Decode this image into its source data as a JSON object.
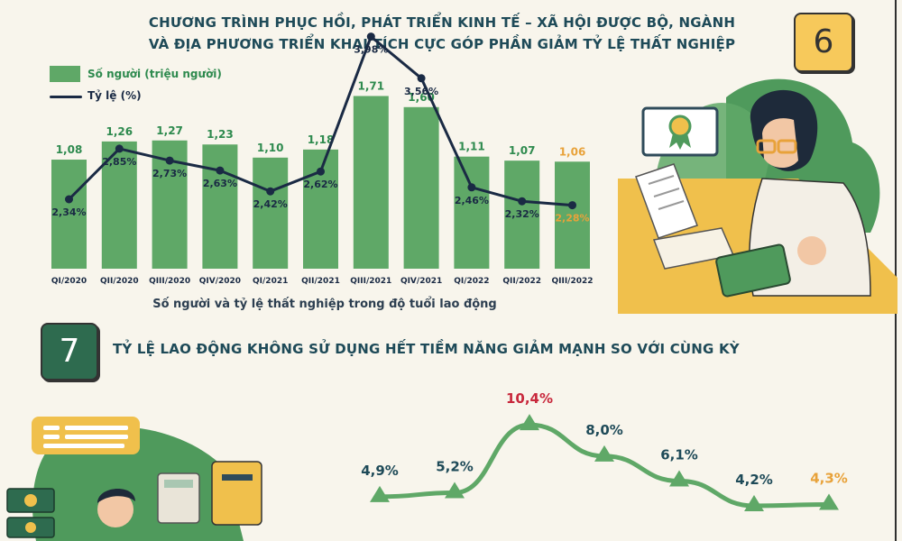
{
  "section6": {
    "number": "6",
    "title_line1": "CHƯƠNG TRÌNH PHỤC HỒI, PHÁT TRIỂN KINH TẾ – XÃ HỘI ĐƯỢC BỘ, NGÀNH",
    "title_line2": "VÀ ĐỊA PHƯƠNG TRIỂN KHAI TÍCH CỰC GÓP PHẦN GIẢM TỶ LỆ THẤT NGHIỆP"
  },
  "section7": {
    "number": "7",
    "title": "TỶ LỆ LAO ĐỘNG KHÔNG SỬ DỤNG HẾT TIỀM NĂNG GIẢM MẠNH SO VỚI CÙNG KỲ"
  },
  "colors": {
    "bar": "#5fa867",
    "line": "#1a2a44",
    "label_green": "#2e8a4e",
    "highlight": "#e8a23a",
    "peak_red": "#c8283c",
    "line7": "#5fa867"
  },
  "chart_data": [
    {
      "type": "bar",
      "caption": "Số người và tỷ lệ thất nghiệp trong độ tuổi lao động",
      "categories": [
        "QI/2020",
        "QII/2020",
        "QIII/2020",
        "QIV/2020",
        "QI/2021",
        "QII/2021",
        "QIII/2021",
        "QIV/2021",
        "QI/2022",
        "QII/2022",
        "QIII/2022"
      ],
      "series": [
        {
          "name": "Số người (triệu người)",
          "values": [
            1.08,
            1.26,
            1.27,
            1.23,
            1.1,
            1.18,
            1.71,
            1.6,
            1.11,
            1.07,
            1.06
          ],
          "labels": [
            "1,08",
            "1,26",
            "1,27",
            "1,23",
            "1,10",
            "1,18",
            "1,71",
            "1,60",
            "1,11",
            "1,07",
            "1,06"
          ]
        },
        {
          "name": "Tỷ lệ (%)",
          "type": "line",
          "values": [
            2.34,
            2.85,
            2.73,
            2.63,
            2.42,
            2.62,
            3.98,
            3.56,
            2.46,
            2.32,
            2.28
          ],
          "labels": [
            "2,34%",
            "2,85%",
            "2,73%",
            "2,63%",
            "2,42%",
            "2,62%",
            "3,98%",
            "3,56%",
            "2,46%",
            "2,32%",
            "2,28%"
          ]
        }
      ],
      "highlight_index": 10
    },
    {
      "type": "line",
      "values": [
        4.9,
        5.2,
        10.4,
        8.0,
        6.1,
        4.2,
        4.3
      ],
      "labels": [
        "4,9%",
        "5,2%",
        "10,4%",
        "8,0%",
        "6,1%",
        "4,2%",
        "4,3%"
      ],
      "peak_index": 2,
      "highlight_index": 6
    }
  ]
}
